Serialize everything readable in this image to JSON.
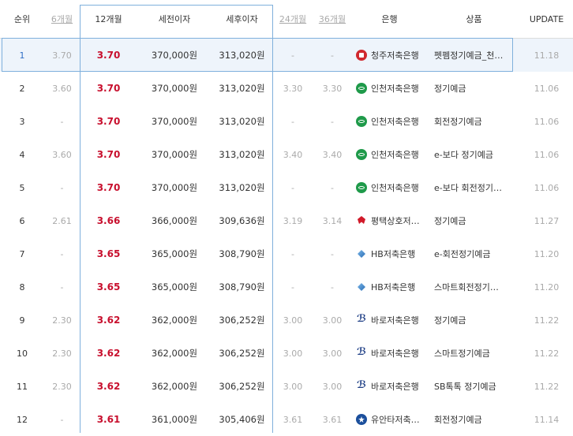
{
  "headers": {
    "rank": "순위",
    "m6": "6개월",
    "m12": "12개월",
    "pretax": "세전이자",
    "aftertax": "세후이자",
    "m24": "24개월",
    "m36": "36개월",
    "bank": "은행",
    "product": "상품",
    "update": "UPDATE"
  },
  "rows": [
    {
      "rank": "1",
      "m6": "3.70",
      "m12": "3.70",
      "pretax": "370,000원",
      "aftertax": "313,020원",
      "m24": "-",
      "m36": "-",
      "bank": "청주저축은행",
      "icon": "cheongju-bank-icon",
      "product": "펫펨정기예금_천…",
      "update": "11.18",
      "selected": true
    },
    {
      "rank": "2",
      "m6": "3.60",
      "m12": "3.70",
      "pretax": "370,000원",
      "aftertax": "313,020원",
      "m24": "3.30",
      "m36": "3.30",
      "bank": "인천저축은행",
      "icon": "incheon-bank-icon",
      "product": "정기예금",
      "update": "11.06"
    },
    {
      "rank": "3",
      "m6": "-",
      "m12": "3.70",
      "pretax": "370,000원",
      "aftertax": "313,020원",
      "m24": "-",
      "m36": "-",
      "bank": "인천저축은행",
      "icon": "incheon-bank-icon",
      "product": "회전정기예금",
      "update": "11.06"
    },
    {
      "rank": "4",
      "m6": "3.60",
      "m12": "3.70",
      "pretax": "370,000원",
      "aftertax": "313,020원",
      "m24": "3.40",
      "m36": "3.40",
      "bank": "인천저축은행",
      "icon": "incheon-bank-icon",
      "product": "e-보다 정기예금",
      "update": "11.06"
    },
    {
      "rank": "5",
      "m6": "-",
      "m12": "3.70",
      "pretax": "370,000원",
      "aftertax": "313,020원",
      "m24": "-",
      "m36": "-",
      "bank": "인천저축은행",
      "icon": "incheon-bank-icon",
      "product": "e-보다 회전정기…",
      "update": "11.06"
    },
    {
      "rank": "6",
      "m6": "2.61",
      "m12": "3.66",
      "pretax": "366,000원",
      "aftertax": "309,636원",
      "m24": "3.19",
      "m36": "3.14",
      "bank": "평택상호저…",
      "icon": "pyeongtaek-bank-icon",
      "product": "정기예금",
      "update": "11.27"
    },
    {
      "rank": "7",
      "m6": "-",
      "m12": "3.65",
      "pretax": "365,000원",
      "aftertax": "308,790원",
      "m24": "-",
      "m36": "-",
      "bank": "HB저축은행",
      "icon": "hb-bank-icon",
      "product": "e-회전정기예금",
      "update": "11.20"
    },
    {
      "rank": "8",
      "m6": "-",
      "m12": "3.65",
      "pretax": "365,000원",
      "aftertax": "308,790원",
      "m24": "-",
      "m36": "-",
      "bank": "HB저축은행",
      "icon": "hb-bank-icon",
      "product": "스마트회전정기…",
      "update": "11.20"
    },
    {
      "rank": "9",
      "m6": "2.30",
      "m12": "3.62",
      "pretax": "362,000원",
      "aftertax": "306,252원",
      "m24": "3.00",
      "m36": "3.00",
      "bank": "바로저축은행",
      "icon": "baro-bank-icon",
      "product": "정기예금",
      "update": "11.22"
    },
    {
      "rank": "10",
      "m6": "2.30",
      "m12": "3.62",
      "pretax": "362,000원",
      "aftertax": "306,252원",
      "m24": "3.00",
      "m36": "3.00",
      "bank": "바로저축은행",
      "icon": "baro-bank-icon",
      "product": "스마트정기예금",
      "update": "11.22"
    },
    {
      "rank": "11",
      "m6": "2.30",
      "m12": "3.62",
      "pretax": "362,000원",
      "aftertax": "306,252원",
      "m24": "3.00",
      "m36": "3.00",
      "bank": "바로저축은행",
      "icon": "baro-bank-icon",
      "product": "SB톡톡 정기예금",
      "update": "11.22"
    },
    {
      "rank": "12",
      "m6": "-",
      "m12": "3.61",
      "pretax": "361,000원",
      "aftertax": "305,406원",
      "m24": "3.61",
      "m36": "3.61",
      "bank": "유안타저축…",
      "icon": "uanta-bank-icon",
      "product": "회전정기예금",
      "update": "11.14"
    }
  ],
  "colors": {
    "accent_rate": "#c8102e",
    "highlight_border": "#7fb0dc",
    "selected_row_bg": "#eef4fb"
  }
}
